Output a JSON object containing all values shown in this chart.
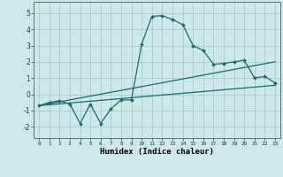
{
  "xlabel": "Humidex (Indice chaleur)",
  "xlim": [
    -0.5,
    23.5
  ],
  "ylim": [
    -2.7,
    5.7
  ],
  "yticks": [
    -2,
    -1,
    0,
    1,
    2,
    3,
    4,
    5
  ],
  "xticks": [
    0,
    1,
    2,
    3,
    4,
    5,
    6,
    7,
    8,
    9,
    10,
    11,
    12,
    13,
    14,
    15,
    16,
    17,
    18,
    19,
    20,
    21,
    22,
    23
  ],
  "bg_color": "#cde8e8",
  "line_color": "#1a6b6b",
  "grid_color": "#a8cccc",
  "main_x": [
    0,
    1,
    2,
    3,
    4,
    5,
    6,
    7,
    8,
    9,
    10,
    11,
    12,
    13,
    14,
    15,
    16,
    17,
    18,
    19,
    20,
    21,
    22,
    23
  ],
  "main_y": [
    -0.7,
    -0.5,
    -0.4,
    -0.6,
    -1.8,
    -0.6,
    -1.8,
    -0.9,
    -0.35,
    -0.35,
    3.1,
    4.8,
    4.85,
    4.6,
    4.3,
    3.0,
    2.7,
    1.85,
    1.9,
    2.0,
    2.1,
    1.0,
    1.1,
    0.7
  ],
  "trend_x": [
    0,
    23
  ],
  "trend_y": [
    -0.7,
    2.0
  ],
  "trend2_x": [
    0,
    23
  ],
  "trend2_y": [
    -0.7,
    0.55
  ]
}
